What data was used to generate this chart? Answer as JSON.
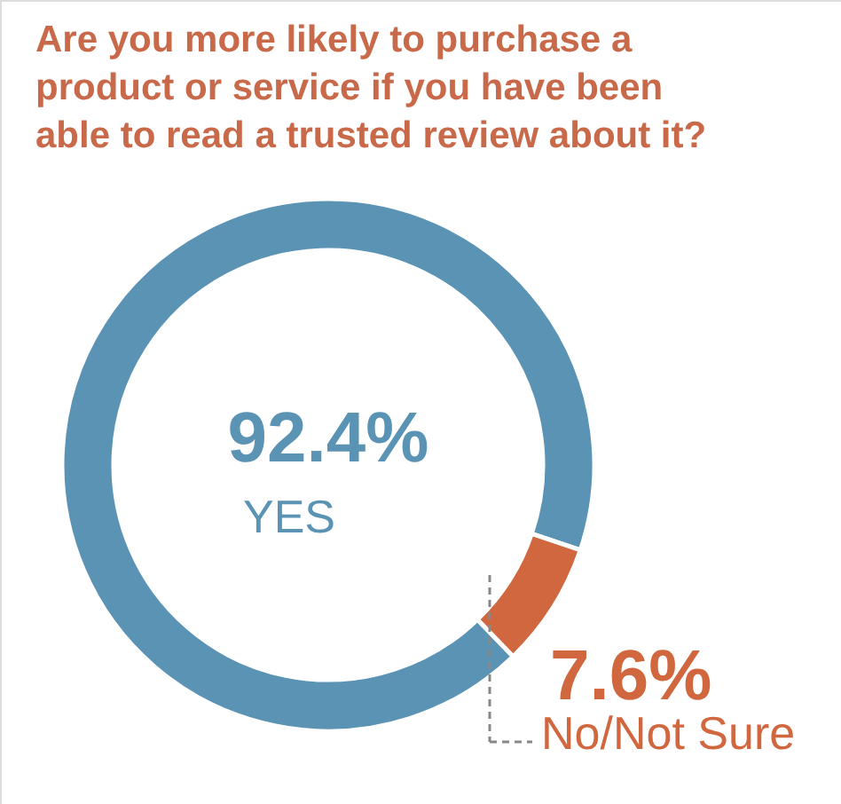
{
  "chart_data": {
    "type": "donut",
    "title": "Are you more likely to purchase a product or service if you have been able to read a trusted review about it?",
    "categories": [
      "YES",
      "No/Not Sure"
    ],
    "values": [
      92.4,
      7.6
    ],
    "colors": [
      "#5b93b5",
      "#d0673f"
    ],
    "value_labels": [
      "92.4%",
      "7.6%"
    ]
  }
}
